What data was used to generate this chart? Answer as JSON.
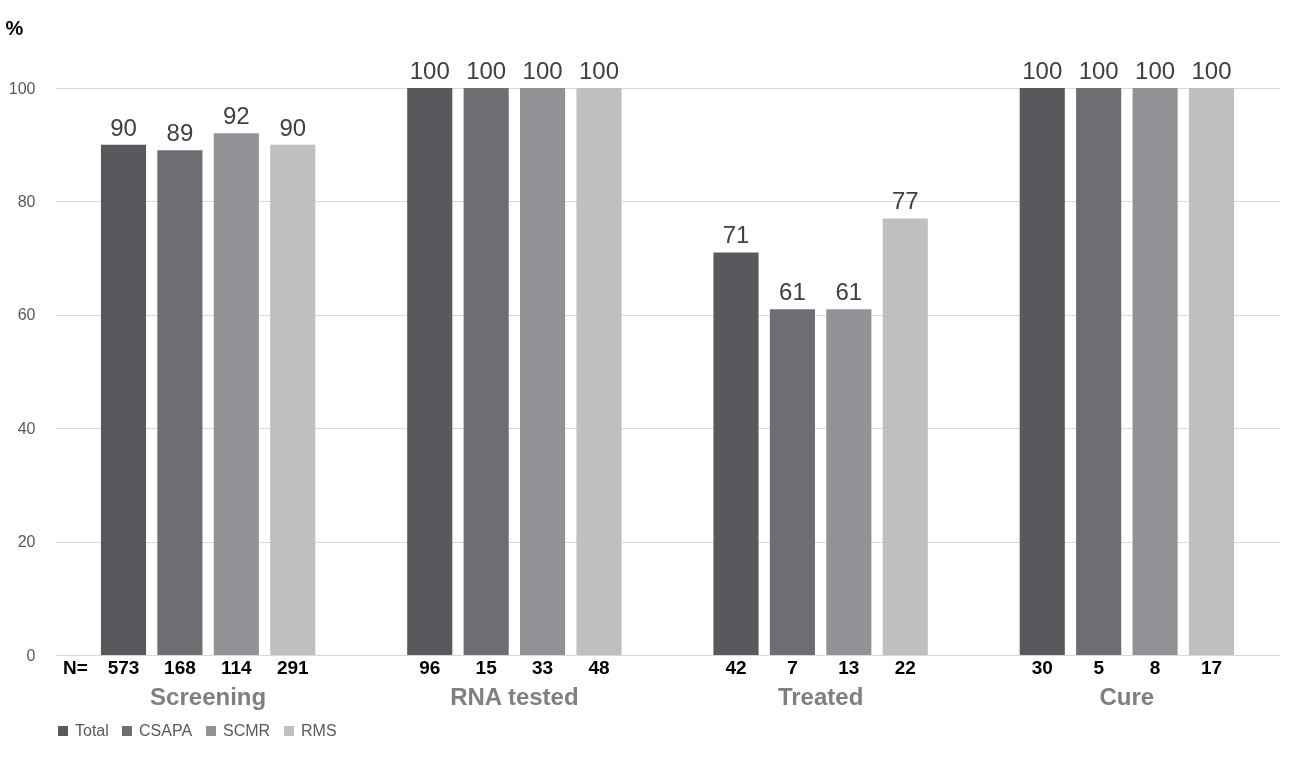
{
  "chart_data": {
    "type": "bar",
    "ylabel": "%",
    "categories": [
      "Screening",
      "RNA tested",
      "Treated",
      "Cure"
    ],
    "series": [
      {
        "name": "Total",
        "color": "#59585d",
        "values": [
          90,
          100,
          71,
          100
        ]
      },
      {
        "name": "CSAPA",
        "color": "#6e6d72",
        "values": [
          89,
          100,
          61,
          100
        ]
      },
      {
        "name": "SCMR",
        "color": "#929196",
        "values": [
          92,
          100,
          61,
          100
        ]
      },
      {
        "name": "RMS",
        "color": "#bfbfbf",
        "values": [
          90,
          100,
          77,
          100
        ]
      }
    ],
    "ylim": [
      0,
      100
    ],
    "yticks": [
      0,
      20,
      40,
      60,
      80,
      100
    ],
    "grid": "y",
    "legend": "bottom",
    "data_labels": true,
    "annotations": [
      "N=",
      "573",
      "168",
      "114",
      "291",
      "96",
      "15",
      "33",
      "48",
      "42",
      "7",
      "13",
      "22",
      "30",
      "5",
      "8",
      "17"
    ]
  }
}
